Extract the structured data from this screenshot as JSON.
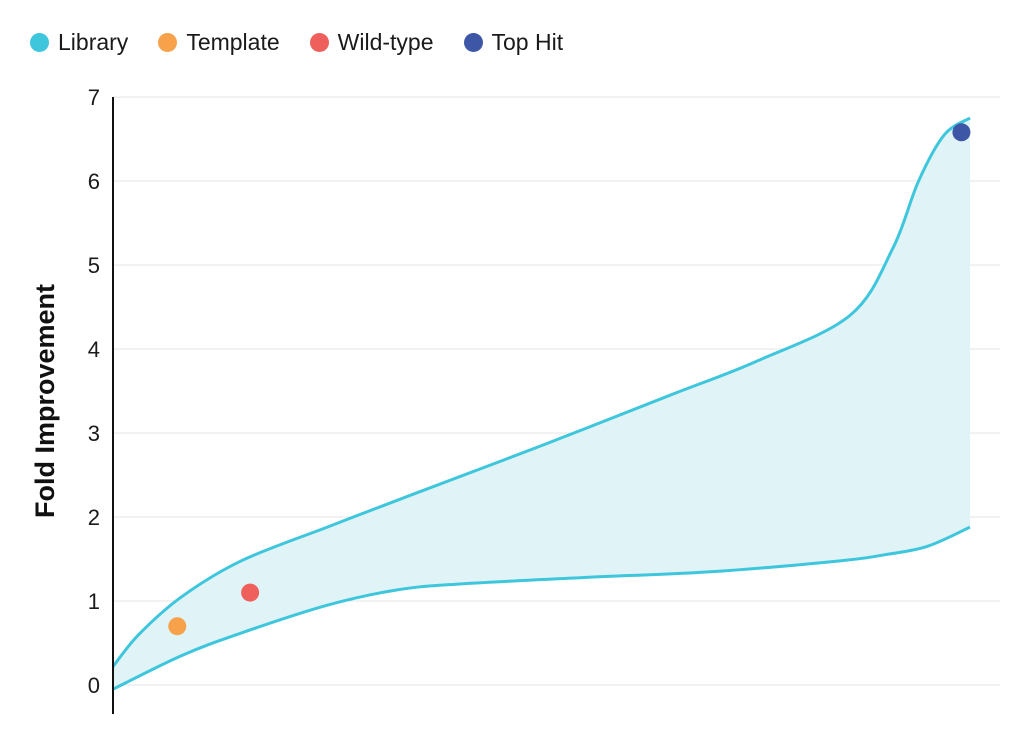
{
  "chart_data": {
    "type": "area",
    "title": "",
    "xlabel": "",
    "ylabel": "Fold Improvement",
    "ylim": [
      0,
      7
    ],
    "yticks": [
      0,
      1,
      2,
      3,
      4,
      5,
      6,
      7
    ],
    "xlim": [
      0,
      100
    ],
    "grid": true,
    "legend_position": "top-left",
    "legend": [
      {
        "label": "Library",
        "color": "#3ec6dc"
      },
      {
        "label": "Template",
        "color": "#f7a14a"
      },
      {
        "label": "Wild-type",
        "color": "#ef5f5c"
      },
      {
        "label": "Top Hit",
        "color": "#3d56a6"
      }
    ],
    "band": {
      "name": "Library",
      "color": "#3ec6dc",
      "fill": "#e0f3f7",
      "upper": {
        "x": [
          0,
          3,
          8,
          15,
          25,
          35,
          50,
          65,
          75,
          86,
          91,
          94,
          97,
          100
        ],
        "y": [
          0.22,
          0.6,
          1.05,
          1.48,
          1.88,
          2.27,
          2.85,
          3.45,
          3.85,
          4.4,
          5.2,
          6.0,
          6.55,
          6.75
        ]
      },
      "lower": {
        "x": [
          0,
          8,
          15,
          25,
          33,
          40,
          55,
          70,
          85,
          90,
          95,
          100
        ],
        "y": [
          -0.05,
          0.35,
          0.62,
          0.95,
          1.13,
          1.2,
          1.28,
          1.35,
          1.48,
          1.55,
          1.65,
          1.88
        ]
      }
    },
    "points": [
      {
        "name": "Template",
        "x": 7.5,
        "y": 0.7,
        "color": "#f7a14a"
      },
      {
        "name": "Wild-type",
        "x": 16,
        "y": 1.1,
        "color": "#ef5f5c"
      },
      {
        "name": "Top Hit",
        "x": 99,
        "y": 6.58,
        "color": "#3d56a6"
      }
    ]
  }
}
